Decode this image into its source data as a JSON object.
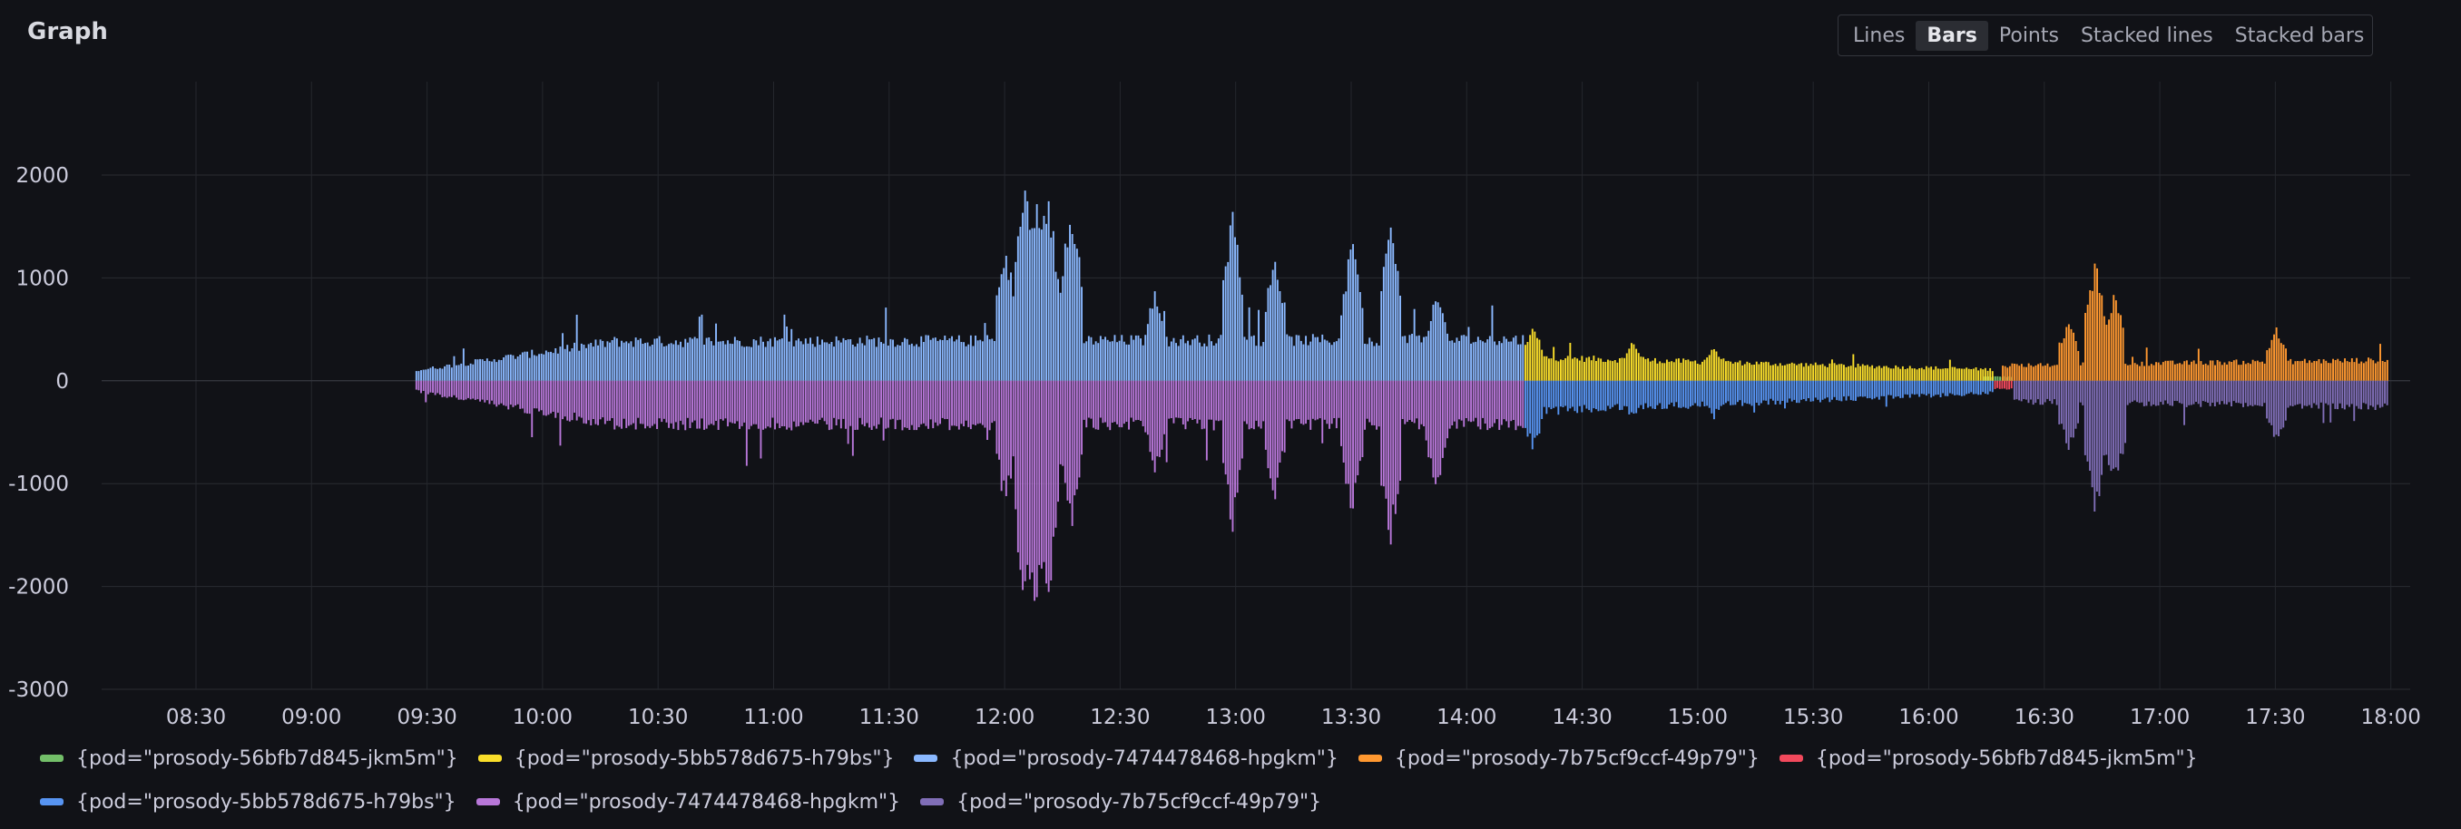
{
  "panel": {
    "title": "Graph"
  },
  "toolbar": {
    "buttons": [
      {
        "label": "Lines",
        "active": false
      },
      {
        "label": "Bars",
        "active": true
      },
      {
        "label": "Points",
        "active": false
      },
      {
        "label": "Stacked lines",
        "active": false
      },
      {
        "label": "Stacked bars",
        "active": false
      }
    ]
  },
  "chart_data": {
    "type": "bar",
    "title": "",
    "xlabel": "",
    "ylabel": "",
    "ylim": [
      -3000,
      2300
    ],
    "yticks": [
      "2000",
      "1000",
      "0",
      "-1000",
      "-2000",
      "-3000"
    ],
    "ytick_values": [
      2000,
      1000,
      0,
      -1000,
      -2000,
      -3000
    ],
    "xticks": [
      "08:30",
      "09:00",
      "09:30",
      "10:00",
      "10:30",
      "11:00",
      "11:30",
      "12:00",
      "12:30",
      "13:00",
      "13:30",
      "14:00",
      "14:30",
      "15:00",
      "15:30",
      "16:00",
      "16:30",
      "17:00",
      "17:30",
      "18:00"
    ],
    "grid": true,
    "legend_position": "bottom",
    "series": [
      {
        "name": "{pod=\"prosody-56bfb7d845-jkm5m\"}",
        "color": "#73bf69",
        "segments": [
          {
            "start": "16:14",
            "end": "16:22",
            "base": 40,
            "peaks": []
          }
        ]
      },
      {
        "name": "{pod=\"prosody-5bb578d675-h79bs\"}",
        "color": "#fade2a",
        "segments": [
          {
            "start": "14:15",
            "end": "16:17",
            "base_start": 230,
            "base_end": 110,
            "peaks": [
              [
                "14:17",
                580
              ],
              [
                "14:43",
                400
              ],
              [
                "15:04",
                360
              ]
            ]
          }
        ]
      },
      {
        "name": "{pod=\"prosody-7474478468-hpgkm\"}",
        "color": "#8ab8ff",
        "segments": [
          {
            "start": "09:27",
            "end": "14:15",
            "base_start": 100,
            "base_mid": 380,
            "base_end": 400,
            "peaks": [
              [
                "12:00",
                1400
              ],
              [
                "12:05",
                2050
              ],
              [
                "12:08",
                1950
              ],
              [
                "12:11",
                1950
              ],
              [
                "12:17",
                1850
              ],
              [
                "12:39",
                950
              ],
              [
                "12:59",
                1700
              ],
              [
                "13:10",
                1300
              ],
              [
                "13:30",
                1400
              ],
              [
                "13:40",
                1600
              ],
              [
                "13:52",
                900
              ]
            ]
          }
        ]
      },
      {
        "name": "{pod=\"prosody-7b75cf9ccf-49p79\"}",
        "color": "#ff9830",
        "segments": [
          {
            "start": "16:19",
            "end": "18:00",
            "base_start": 150,
            "base_end": 200,
            "peaks": [
              [
                "16:36",
                600
              ],
              [
                "16:43",
                1200
              ],
              [
                "16:48",
                900
              ],
              [
                "17:30",
                550
              ]
            ]
          }
        ]
      },
      {
        "name": "{pod=\"prosody-56bfb7d845-jkm5m\"}",
        "color": "#f2495c",
        "segments": [
          {
            "start": "16:17",
            "end": "16:22",
            "base": -80,
            "peaks": []
          }
        ]
      },
      {
        "name": "{pod=\"prosody-5bb578d675-h79bs\"}",
        "color": "#5794f2",
        "segments": [
          {
            "start": "14:15",
            "end": "16:17",
            "base_start": -300,
            "base_end": -120,
            "peaks": [
              [
                "14:17",
                -700
              ],
              [
                "14:43",
                -400
              ],
              [
                "15:04",
                -380
              ]
            ]
          }
        ]
      },
      {
        "name": "{pod=\"prosody-7474478468-hpgkm\"}",
        "color": "#b877d9",
        "segments": [
          {
            "start": "09:27",
            "end": "14:15",
            "base_start": -100,
            "base_mid": -420,
            "base_end": -420,
            "peaks": [
              [
                "12:00",
                -1300
              ],
              [
                "12:05",
                -2450
              ],
              [
                "12:08",
                -2400
              ],
              [
                "12:11",
                -2350
              ],
              [
                "12:17",
                -1500
              ],
              [
                "12:39",
                -950
              ],
              [
                "12:59",
                -1500
              ],
              [
                "13:10",
                -1200
              ],
              [
                "13:30",
                -1350
              ],
              [
                "13:40",
                -1650
              ],
              [
                "13:52",
                -1150
              ]
            ]
          }
        ]
      },
      {
        "name": "{pod=\"prosody-7b75cf9ccf-49p79\"}",
        "color": "#806eb7",
        "segments": [
          {
            "start": "16:22",
            "end": "18:00",
            "base_start": -200,
            "base_end": -250,
            "peaks": [
              [
                "16:36",
                -700
              ],
              [
                "16:43",
                -1350
              ],
              [
                "16:48",
                -1100
              ],
              [
                "17:30",
                -650
              ]
            ]
          }
        ]
      }
    ]
  },
  "legend": {
    "rows": [
      [
        0,
        1,
        2,
        3,
        4
      ],
      [
        5,
        6,
        7
      ]
    ]
  }
}
